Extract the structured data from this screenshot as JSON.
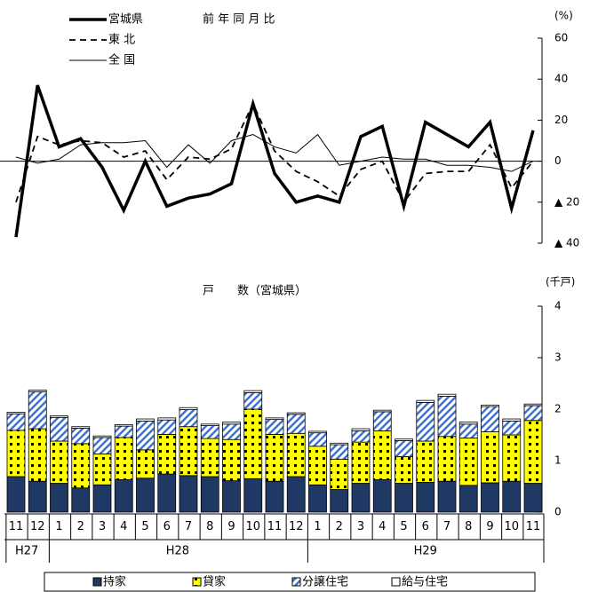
{
  "chart_data": [
    {
      "type": "line",
      "title": "前 年 同 月 比",
      "unit": "(%)",
      "ylim": [
        -40,
        60
      ],
      "yticks": [
        {
          "value": -40,
          "label": "▲ 40"
        },
        {
          "value": -20,
          "label": "▲ 20"
        },
        0,
        20,
        40,
        60
      ],
      "series": [
        {
          "name": "宮城県",
          "color": "#000000",
          "style": "solid",
          "width": 3.5,
          "values": [
            -37,
            37,
            7,
            11,
            -3,
            -24,
            0,
            -22,
            -18,
            -16,
            -11,
            28,
            -6,
            -20,
            -17,
            -20,
            12,
            17,
            -22,
            19,
            13,
            7,
            19,
            -23,
            15
          ]
        },
        {
          "name": "東 北",
          "color": "#000000",
          "style": "dashed",
          "width": 1.8,
          "values": [
            -20,
            12,
            8,
            10,
            9,
            2,
            5,
            -9,
            2,
            1,
            6,
            28,
            5,
            -5,
            -10,
            -17,
            -4,
            0,
            -20,
            -6,
            -5,
            -5,
            8,
            -13,
            0
          ]
        },
        {
          "name": "全 国",
          "color": "#000000",
          "style": "solid",
          "width": 1,
          "values": [
            2,
            -1,
            1,
            8,
            9,
            9,
            10,
            -3,
            8,
            -1,
            10,
            13,
            7,
            4,
            13,
            -2,
            0,
            2,
            1,
            1,
            -2,
            -2,
            -3,
            -5,
            0
          ]
        }
      ]
    },
    {
      "type": "stacked_bar",
      "title": "戸　　数（宮城県）",
      "unit": "(千戸)",
      "categories": [
        "11",
        "12",
        "1",
        "2",
        "3",
        "4",
        "5",
        "6",
        "7",
        "8",
        "9",
        "10",
        "11",
        "12",
        "1",
        "2",
        "3",
        "4",
        "5",
        "6",
        "7",
        "8",
        "9",
        "10",
        "11"
      ],
      "year_labels": [
        "H27",
        "H28",
        "H29"
      ],
      "ylim": [
        0,
        4
      ],
      "yticks": [
        0,
        1,
        2,
        3,
        4
      ],
      "series": [
        {
          "name": "持家",
          "color": "#1f3864",
          "pattern": "solid",
          "values": [
            0.69,
            0.6,
            0.56,
            0.47,
            0.53,
            0.63,
            0.66,
            0.74,
            0.71,
            0.69,
            0.61,
            0.65,
            0.6,
            0.69,
            0.53,
            0.44,
            0.56,
            0.63,
            0.56,
            0.58,
            0.6,
            0.52,
            0.57,
            0.6,
            0.56
          ]
        },
        {
          "name": "貸家",
          "color": "#ffff00",
          "pattern": "dots",
          "values": [
            0.9,
            1.02,
            0.82,
            0.86,
            0.6,
            0.82,
            0.55,
            0.77,
            0.95,
            0.74,
            0.8,
            1.35,
            0.91,
            0.84,
            0.75,
            0.59,
            0.8,
            0.95,
            0.52,
            0.8,
            0.87,
            0.92,
            0.99,
            0.9,
            1.22
          ]
        },
        {
          "name": "分譲住宅",
          "color": "#4472c4",
          "pattern": "stripes",
          "values": [
            0.32,
            0.72,
            0.46,
            0.3,
            0.32,
            0.22,
            0.56,
            0.28,
            0.33,
            0.25,
            0.3,
            0.32,
            0.29,
            0.37,
            0.26,
            0.28,
            0.22,
            0.37,
            0.31,
            0.75,
            0.78,
            0.27,
            0.49,
            0.27,
            0.29
          ]
        },
        {
          "name": "給与住宅",
          "color": "#ffffff",
          "pattern": "solid",
          "values": [
            0.03,
            0.03,
            0.03,
            0.03,
            0.03,
            0.03,
            0.04,
            0.04,
            0.04,
            0.03,
            0.04,
            0.04,
            0.03,
            0.03,
            0.03,
            0.03,
            0.04,
            0.03,
            0.03,
            0.04,
            0.04,
            0.04,
            0.03,
            0.04,
            0.03
          ]
        }
      ]
    }
  ]
}
